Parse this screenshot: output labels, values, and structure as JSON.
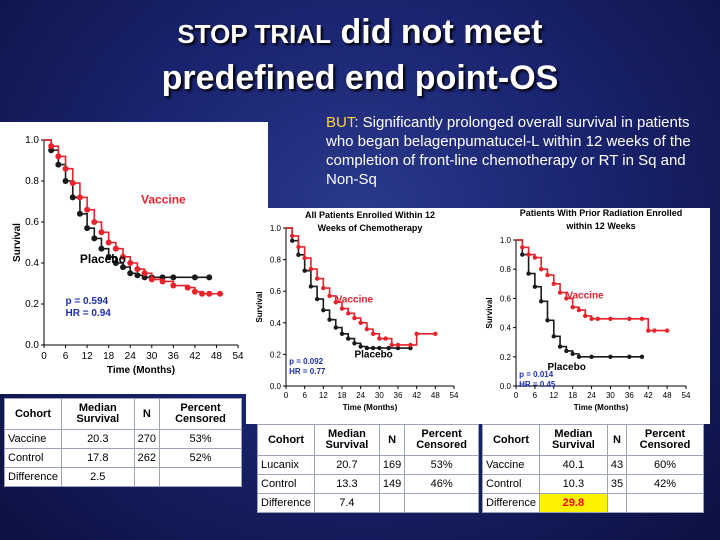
{
  "title": {
    "line1_part1": "STOP TRIAL",
    "line1_part2": "did not meet",
    "line2": "predefined end point-OS"
  },
  "note": {
    "prefix": "BUT",
    "text": ": Significantly prolonged overall survival in patients who began belagenpumatucel-L within 12 weeks of the completion of front-line chemotherapy or RT  in Sq and Non-Sq"
  },
  "colors": {
    "vaccine": "#e8222b",
    "placebo": "#1a1a1a",
    "highlight": "#ff0000"
  },
  "chart_data": [
    {
      "type": "line",
      "title": "",
      "xlabel": "Time (Months)",
      "ylabel": "Survival",
      "xlim": [
        0,
        54
      ],
      "ylim": [
        0,
        1.0
      ],
      "x_ticks": [
        "0",
        "6",
        "12",
        "18",
        "24",
        "30",
        "36",
        "42",
        "48",
        "54"
      ],
      "y_ticks": [
        "0.0",
        "0.2",
        "0.4",
        "0.6",
        "0.8",
        "1.0"
      ],
      "series": [
        {
          "name": "Vaccine",
          "x": [
            0,
            2,
            4,
            6,
            8,
            10,
            12,
            14,
            16,
            18,
            20,
            22,
            24,
            26,
            28,
            30,
            33,
            36,
            40,
            42,
            44,
            46,
            49
          ],
          "y": [
            1.0,
            0.97,
            0.92,
            0.86,
            0.79,
            0.72,
            0.66,
            0.6,
            0.55,
            0.5,
            0.47,
            0.43,
            0.4,
            0.37,
            0.35,
            0.32,
            0.31,
            0.29,
            0.28,
            0.26,
            0.25,
            0.25,
            0.25
          ]
        },
        {
          "name": "Placebo",
          "x": [
            0,
            2,
            4,
            6,
            8,
            10,
            12,
            14,
            16,
            18,
            20,
            22,
            24,
            26,
            28,
            30,
            33,
            36,
            42,
            46
          ],
          "y": [
            1.0,
            0.95,
            0.88,
            0.8,
            0.72,
            0.64,
            0.57,
            0.52,
            0.47,
            0.43,
            0.4,
            0.38,
            0.35,
            0.34,
            0.33,
            0.33,
            0.33,
            0.33,
            0.33,
            0.33
          ]
        }
      ],
      "labels": {
        "vaccine": "Vaccine",
        "placebo": "Placebo"
      },
      "stats": [
        "p = 0.594",
        "HR = 0.94"
      ]
    },
    {
      "type": "line",
      "title": "All Patients Enrolled Within 12 Weeks of Chemotherapy",
      "title_lines": [
        "All Patients Enrolled Within 12",
        "Weeks of Chemotherapy"
      ],
      "xlabel": "Time (Months)",
      "ylabel": "Survival",
      "xlim": [
        0,
        54
      ],
      "ylim": [
        0,
        1.0
      ],
      "x_ticks": [
        "0",
        "6",
        "12",
        "18",
        "24",
        "30",
        "36",
        "42",
        "48",
        "54"
      ],
      "y_ticks": [
        "0.0",
        "0.2",
        "0.4",
        "0.6",
        "0.8",
        "1.0"
      ],
      "series": [
        {
          "name": "Vaccine",
          "x": [
            0,
            2,
            4,
            6,
            8,
            10,
            12,
            14,
            16,
            18,
            20,
            22,
            24,
            26,
            28,
            30,
            32,
            34,
            36,
            40,
            42,
            48
          ],
          "y": [
            1.0,
            0.95,
            0.88,
            0.81,
            0.74,
            0.68,
            0.62,
            0.57,
            0.53,
            0.49,
            0.46,
            0.43,
            0.4,
            0.36,
            0.33,
            0.3,
            0.3,
            0.26,
            0.26,
            0.26,
            0.33,
            0.33
          ]
        },
        {
          "name": "Placebo",
          "x": [
            0,
            2,
            4,
            6,
            8,
            10,
            12,
            14,
            16,
            18,
            20,
            22,
            24,
            26,
            28,
            30,
            33,
            36,
            40
          ],
          "y": [
            1.0,
            0.92,
            0.83,
            0.73,
            0.63,
            0.55,
            0.48,
            0.42,
            0.37,
            0.33,
            0.3,
            0.27,
            0.25,
            0.24,
            0.24,
            0.24,
            0.24,
            0.24,
            0.24
          ]
        }
      ],
      "labels": {
        "vaccine": "Vaccine",
        "placebo": "Placebo"
      },
      "stats": [
        "p = 0.092",
        "HR = 0.77"
      ]
    },
    {
      "type": "line",
      "title": "Patients With Prior Radiation Enrolled within 12 Weeks",
      "title_lines": [
        "Patients With Prior Radiation Enrolled",
        "within 12 Weeks"
      ],
      "xlabel": "Time (Months)",
      "ylabel": "Survival",
      "xlim": [
        0,
        54
      ],
      "ylim": [
        0,
        1.0
      ],
      "x_ticks": [
        "0",
        "6",
        "12",
        "18",
        "24",
        "30",
        "36",
        "42",
        "48",
        "54"
      ],
      "y_ticks": [
        "0.0",
        "0.2",
        "0.4",
        "0.6",
        "0.8",
        "1.0"
      ],
      "series": [
        {
          "name": "Vaccine",
          "x": [
            0,
            2,
            4,
            6,
            8,
            10,
            12,
            14,
            16,
            18,
            20,
            22,
            24,
            26,
            30,
            36,
            40,
            42,
            44,
            48
          ],
          "y": [
            1.0,
            0.95,
            0.9,
            0.88,
            0.8,
            0.76,
            0.7,
            0.64,
            0.6,
            0.54,
            0.52,
            0.48,
            0.46,
            0.46,
            0.46,
            0.46,
            0.46,
            0.38,
            0.38,
            0.38
          ]
        },
        {
          "name": "Placebo",
          "x": [
            0,
            2,
            4,
            6,
            8,
            10,
            12,
            14,
            16,
            18,
            20,
            24,
            30,
            36,
            40
          ],
          "y": [
            1.0,
            0.9,
            0.77,
            0.68,
            0.58,
            0.45,
            0.34,
            0.27,
            0.24,
            0.22,
            0.2,
            0.2,
            0.2,
            0.2,
            0.2
          ]
        }
      ],
      "labels": {
        "vaccine": "Vaccine",
        "placebo": "Placebo"
      },
      "stats": [
        "p = 0.014",
        "HR = 0.45"
      ]
    }
  ],
  "tables": [
    {
      "headers": [
        "Cohort",
        "Median Survival",
        "N",
        "Percent Censored"
      ],
      "rows": [
        [
          "Vaccine",
          "20.3",
          "270",
          "53%"
        ],
        [
          "Control",
          "17.8",
          "262",
          "52%"
        ],
        [
          "Difference",
          "2.5",
          "",
          ""
        ]
      ]
    },
    {
      "headers": [
        "Cohort",
        "Median Survival",
        "N",
        "Percent Censored"
      ],
      "rows": [
        [
          "Lucanix",
          "20.7",
          "169",
          "53%"
        ],
        [
          "Control",
          "13.3",
          "149",
          "46%"
        ],
        [
          "Difference",
          "7.4",
          "",
          ""
        ]
      ]
    },
    {
      "headers": [
        "Cohort",
        "Median Survival",
        "N",
        "Percent Censored"
      ],
      "rows": [
        [
          "Vaccine",
          "40.1",
          "43",
          "60%"
        ],
        [
          "Control",
          "10.3",
          "35",
          "42%"
        ],
        [
          "Difference",
          "29.8",
          "",
          ""
        ]
      ]
    }
  ]
}
